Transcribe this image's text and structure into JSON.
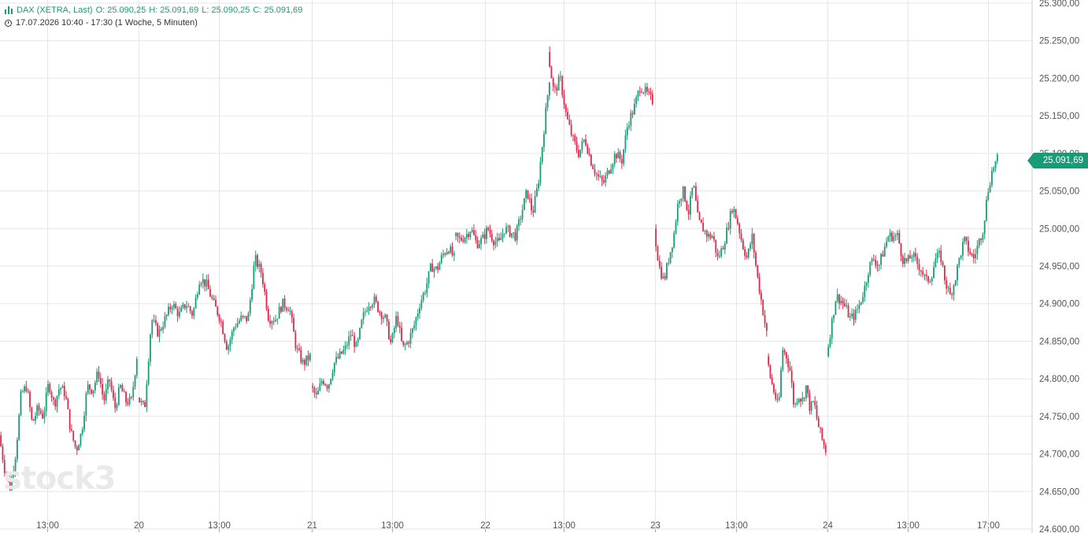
{
  "header": {
    "instrument": "DAX (XETRA, Last)",
    "open_label": "O:",
    "open": "25.090,25",
    "high_label": "H:",
    "high": "25.091,69",
    "low_label": "L:",
    "low": "25.090,25",
    "close_label": "C:",
    "close": "25.091,69",
    "range": "17.07.2026 10:40 - 17:30  (1 Woche, 5 Minuten)"
  },
  "watermark": "stock3",
  "last_price_tag": "25.091,69",
  "colors": {
    "up": "#1a9b78",
    "down": "#e0284a",
    "grid": "#e6e6e6"
  },
  "chart_data": {
    "type": "candlestick",
    "y_axis": {
      "min": 24600,
      "max": 25300,
      "step": 50,
      "tick_labels": [
        "24.600,00",
        "24.650,00",
        "24.700,00",
        "24.750,00",
        "24.800,00",
        "24.850,00",
        "24.900,00",
        "24.950,00",
        "25.000,00",
        "25.050,00",
        "25.100,00",
        "25.150,00",
        "25.200,00",
        "25.250,00",
        "25.300,00"
      ]
    },
    "x_axis": {
      "tick_labels": [
        "13:00",
        "20",
        "13:00",
        "21",
        "13:00",
        "22",
        "13:00",
        "23",
        "13:00",
        "24",
        "13:00",
        "17:00"
      ]
    },
    "grid": true,
    "sessions": [
      {
        "day": "17",
        "points": [
          [
            9.0,
            24725
          ],
          [
            9.5,
            24680
          ],
          [
            10.0,
            24655
          ],
          [
            10.5,
            24700
          ],
          [
            11.0,
            24780
          ],
          [
            11.5,
            24790
          ],
          [
            12.0,
            24740
          ],
          [
            12.5,
            24760
          ],
          [
            13.0,
            24750
          ],
          [
            13.5,
            24795
          ],
          [
            14.0,
            24765
          ],
          [
            14.5,
            24790
          ],
          [
            15.0,
            24780
          ],
          [
            15.5,
            24730
          ],
          [
            16.0,
            24705
          ],
          [
            16.5,
            24730
          ],
          [
            17.0,
            24790
          ],
          [
            17.5,
            24785
          ],
          [
            18.0,
            24810
          ],
          [
            18.5,
            24770
          ],
          [
            19.0,
            24800
          ],
          [
            19.5,
            24760
          ],
          [
            20.0,
            24790
          ],
          [
            20.5,
            24770
          ],
          [
            21.0,
            24770
          ],
          [
            21.5,
            24830
          ]
        ]
      },
      {
        "day": "20",
        "points": [
          [
            9.0,
            24775
          ],
          [
            9.5,
            24760
          ],
          [
            10.0,
            24880
          ],
          [
            10.5,
            24860
          ],
          [
            11.0,
            24880
          ],
          [
            11.5,
            24900
          ],
          [
            12.0,
            24885
          ],
          [
            12.5,
            24900
          ],
          [
            13.0,
            24885
          ],
          [
            13.5,
            24935
          ],
          [
            14.0,
            24925
          ],
          [
            14.5,
            24900
          ],
          [
            15.0,
            24880
          ],
          [
            15.5,
            24840
          ],
          [
            16.0,
            24870
          ],
          [
            16.5,
            24880
          ],
          [
            17.0,
            24880
          ],
          [
            17.5,
            24960
          ],
          [
            18.0,
            24940
          ],
          [
            18.5,
            24880
          ],
          [
            19.0,
            24880
          ],
          [
            19.5,
            24900
          ],
          [
            20.0,
            24895
          ],
          [
            20.5,
            24840
          ],
          [
            21.0,
            24820
          ],
          [
            21.5,
            24830
          ]
        ]
      },
      {
        "day": "21",
        "points": [
          [
            9.0,
            24790
          ],
          [
            9.5,
            24775
          ],
          [
            10.0,
            24800
          ],
          [
            10.5,
            24790
          ],
          [
            11.0,
            24820
          ],
          [
            11.5,
            24830
          ],
          [
            12.0,
            24840
          ],
          [
            12.5,
            24860
          ],
          [
            13.0,
            24840
          ],
          [
            13.5,
            24880
          ],
          [
            14.0,
            24900
          ],
          [
            14.5,
            24905
          ],
          [
            15.0,
            24890
          ],
          [
            15.5,
            24880
          ],
          [
            16.0,
            24845
          ],
          [
            16.5,
            24885
          ],
          [
            17.0,
            24840
          ],
          [
            17.5,
            24850
          ],
          [
            18.0,
            24870
          ],
          [
            18.5,
            24900
          ],
          [
            19.0,
            24920
          ],
          [
            19.5,
            24950
          ],
          [
            20.0,
            24945
          ],
          [
            20.5,
            24965
          ],
          [
            21.0,
            24975
          ],
          [
            21.5,
            24960
          ]
        ]
      },
      {
        "day": "22",
        "points": [
          [
            9.0,
            24990
          ],
          [
            9.5,
            24985
          ],
          [
            10.0,
            24990
          ],
          [
            10.5,
            25000
          ],
          [
            11.0,
            24980
          ],
          [
            11.5,
            24985
          ],
          [
            12.0,
            25000
          ],
          [
            12.5,
            24985
          ],
          [
            13.0,
            24980
          ],
          [
            13.5,
            25000
          ],
          [
            14.0,
            24995
          ],
          [
            14.5,
            24990
          ],
          [
            15.0,
            25020
          ],
          [
            15.5,
            25050
          ],
          [
            16.0,
            25020
          ],
          [
            16.5,
            25060
          ],
          [
            17.0,
            25130
          ],
          [
            17.5,
            25200
          ]
        ]
      },
      {
        "day": "22b",
        "points": [
          [
            13.0,
            25235
          ],
          [
            13.5,
            25180
          ],
          [
            14.0,
            25200
          ],
          [
            14.5,
            25150
          ],
          [
            15.0,
            25120
          ],
          [
            15.5,
            25100
          ],
          [
            16.0,
            25120
          ],
          [
            16.5,
            25090
          ],
          [
            17.0,
            25070
          ],
          [
            17.5,
            25060
          ],
          [
            18.0,
            25080
          ],
          [
            18.5,
            25100
          ],
          [
            19.0,
            25090
          ],
          [
            19.5,
            25140
          ],
          [
            20.0,
            25160
          ],
          [
            20.5,
            25190
          ],
          [
            21.0,
            25180
          ],
          [
            21.5,
            25170
          ]
        ]
      },
      {
        "day": "23",
        "points": [
          [
            9.0,
            25000
          ],
          [
            9.5,
            24950
          ],
          [
            10.0,
            24930
          ],
          [
            10.5,
            24960
          ],
          [
            11.0,
            24990
          ],
          [
            11.5,
            25040
          ],
          [
            12.0,
            25050
          ],
          [
            12.5,
            25020
          ],
          [
            13.0,
            25060
          ],
          [
            13.5,
            25010
          ],
          [
            14.0,
            25000
          ],
          [
            14.5,
            24990
          ],
          [
            15.0,
            24990
          ],
          [
            15.5,
            24960
          ],
          [
            16.0,
            24975
          ],
          [
            16.5,
            25000
          ],
          [
            17.0,
            25030
          ],
          [
            17.5,
            25010
          ],
          [
            18.0,
            24980
          ],
          [
            18.5,
            24960
          ],
          [
            19.0,
            24990
          ],
          [
            19.5,
            24940
          ],
          [
            20.0,
            24900
          ],
          [
            20.5,
            24860
          ]
        ]
      },
      {
        "day": "23b",
        "points": [
          [
            13.0,
            24830
          ],
          [
            13.5,
            24800
          ],
          [
            14.0,
            24780
          ],
          [
            14.5,
            24760
          ],
          [
            15.0,
            24840
          ],
          [
            15.5,
            24830
          ],
          [
            16.0,
            24810
          ],
          [
            16.5,
            24760
          ],
          [
            17.0,
            24780
          ],
          [
            17.5,
            24770
          ],
          [
            18.0,
            24790
          ],
          [
            18.5,
            24760
          ],
          [
            19.0,
            24770
          ],
          [
            19.5,
            24740
          ],
          [
            20.0,
            24720
          ],
          [
            20.5,
            24705
          ]
        ]
      },
      {
        "day": "24",
        "points": [
          [
            9.0,
            24830
          ],
          [
            9.5,
            24870
          ],
          [
            10.0,
            24910
          ],
          [
            10.5,
            24905
          ],
          [
            11.0,
            24895
          ],
          [
            11.5,
            24880
          ],
          [
            12.0,
            24885
          ],
          [
            12.5,
            24900
          ],
          [
            13.0,
            24920
          ],
          [
            13.5,
            24950
          ],
          [
            14.0,
            24960
          ],
          [
            14.5,
            24950
          ],
          [
            15.0,
            24970
          ],
          [
            15.5,
            24990
          ],
          [
            16.0,
            24990
          ],
          [
            16.5,
            24990
          ],
          [
            17.0,
            24960
          ],
          [
            17.5,
            24955
          ],
          [
            18.0,
            24965
          ],
          [
            18.5,
            24955
          ],
          [
            19.0,
            24945
          ],
          [
            19.5,
            24930
          ],
          [
            20.0,
            24935
          ],
          [
            20.5,
            24960
          ],
          [
            21.0,
            24965
          ],
          [
            21.5,
            24930
          ],
          [
            22.0,
            24910
          ],
          [
            22.5,
            24930
          ],
          [
            23.0,
            24960
          ],
          [
            23.5,
            24985
          ],
          [
            24.0,
            24970
          ],
          [
            24.5,
            24960
          ],
          [
            25.0,
            24980
          ],
          [
            25.5,
            25000
          ],
          [
            26.0,
            25050
          ],
          [
            26.5,
            25080
          ],
          [
            27.0,
            25091.69
          ]
        ]
      }
    ]
  }
}
